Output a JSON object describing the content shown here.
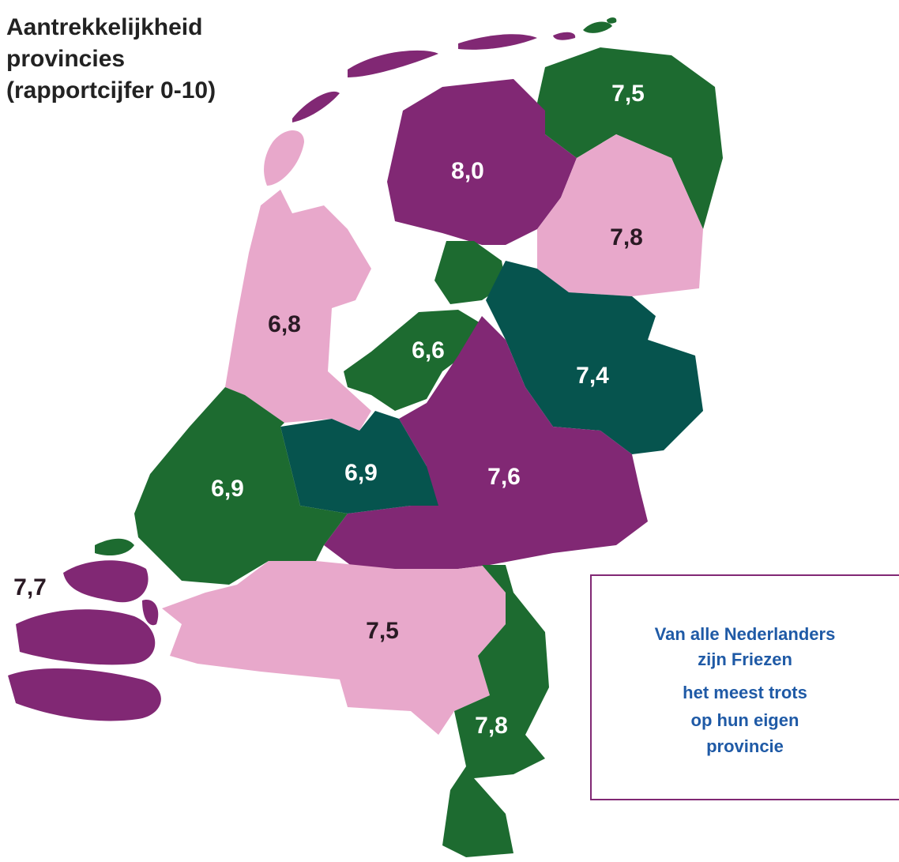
{
  "title_lines": [
    "Aantrekkelijkheid",
    "provincies",
    "(rapportcijfer 0-10)"
  ],
  "regions": [
    {
      "label": "7,5",
      "color": "#1d6b30"
    },
    {
      "label": "8,0",
      "color": "#812874"
    },
    {
      "label": "7,8",
      "color": "#e8a8cb"
    },
    {
      "label": "6,6",
      "color": "#1d6b30"
    },
    {
      "label": "7,4",
      "color": "#06544e"
    },
    {
      "label": "6,8",
      "color": "#e8a8cb"
    },
    {
      "label": "7,6",
      "color": "#812874"
    },
    {
      "label": "6,9",
      "color": "#06544e"
    },
    {
      "label": "6,9",
      "color": "#1d6b30"
    },
    {
      "label": "7,7",
      "color": "#812874"
    },
    {
      "label": "7,5",
      "color": "#e8a8cb"
    },
    {
      "label": "7,8",
      "color": "#1d6b30"
    }
  ],
  "callout": {
    "lines": [
      "Van alle Nederlanders",
      "zijn Friezen",
      "het meest trots",
      "op hun eigen",
      "provincie"
    ]
  }
}
